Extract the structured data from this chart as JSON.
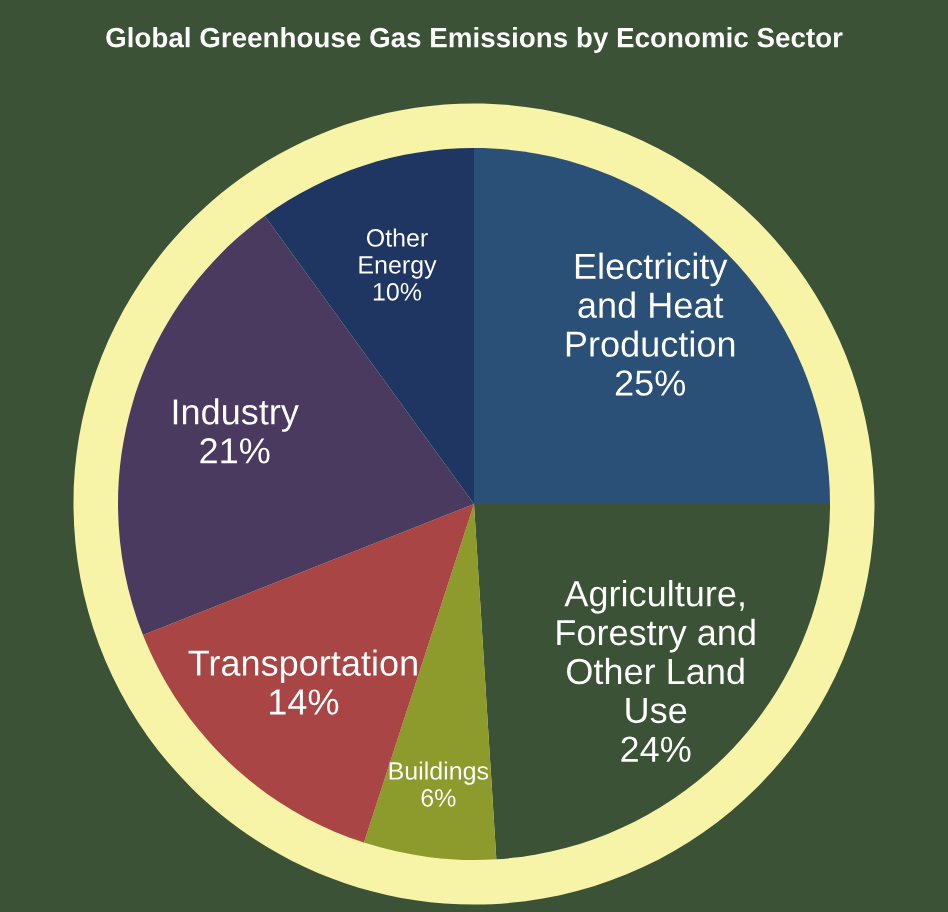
{
  "chart_data": {
    "type": "pie",
    "title": "Global Greenhouse Gas Emissions by Economic Sector",
    "categories": [
      "Electricity\nand Heat\nProduction",
      "Agriculture,\nForestry and\nOther Land\nUse",
      "Buildings",
      "Transportation",
      "Industry",
      "Other\nEnergy"
    ],
    "values": [
      25,
      24,
      6,
      14,
      21,
      10
    ],
    "value_labels": [
      "25%",
      "24%",
      "6%",
      "14%",
      "21%",
      "10%"
    ],
    "colors": [
      "#2b5078",
      "#3b5236",
      "#8d9a2c",
      "#a94545",
      "#4b3a5f",
      "#1f3562"
    ],
    "legend": false
  }
}
